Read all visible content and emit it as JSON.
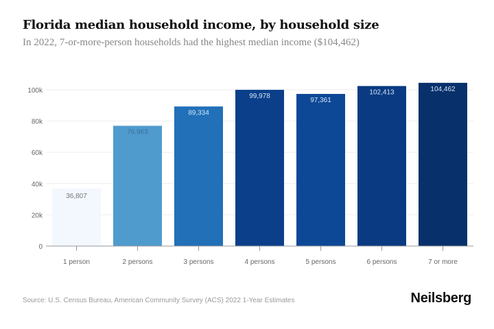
{
  "chart_data": {
    "type": "bar",
    "title": "Florida median household income, by household size",
    "subtitle": "In 2022, 7-or-more-person households had the highest median income ($104,462)",
    "categories": [
      "1 person",
      "2 persons",
      "3 persons",
      "4 persons",
      "5 persons",
      "6 persons",
      "7 or more"
    ],
    "values": [
      36807,
      76963,
      89334,
      99978,
      97361,
      102413,
      104462
    ],
    "value_labels": [
      "36,807",
      "76,963",
      "89,334",
      "99,978",
      "97,361",
      "102,413",
      "104,462"
    ],
    "colors": [
      "#f3f8fe",
      "#4f9bce",
      "#2170b8",
      "#0b3f8a",
      "#0d4896",
      "#0a3a82",
      "#08306b"
    ],
    "label_colors": [
      "#777777",
      "#3c6f99",
      "#cfe3f5",
      "#d5e4f5",
      "#d5e4f5",
      "#d5e4f5",
      "#d5e4f5"
    ],
    "yticks": [
      0,
      20000,
      40000,
      60000,
      80000,
      100000
    ],
    "ytick_labels": [
      "0",
      "20k",
      "40k",
      "60k",
      "80k",
      "100k"
    ],
    "ylim": [
      0,
      100000
    ],
    "xlabel": "",
    "ylabel": "",
    "grid": true
  },
  "footer": {
    "source": "Source: U.S. Census Bureau, American Community Survey (ACS) 2022 1-Year Estimates",
    "brand": "Neilsberg"
  }
}
